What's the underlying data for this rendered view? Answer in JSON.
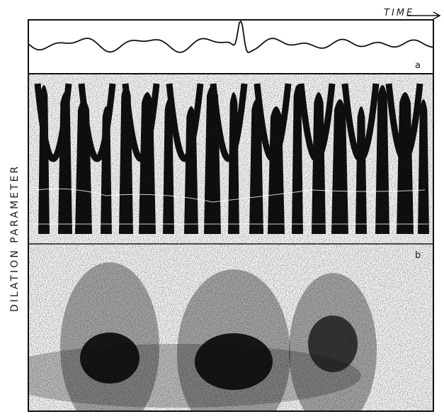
{
  "figure": {
    "time_label": "TIME",
    "dilation_label": "DILATION PARAMETER",
    "panel_a_label": "a",
    "panel_b_label": "b"
  },
  "colors": {
    "ink": "#111111",
    "paper": "#ffffff",
    "stipple": "#2a2a2a"
  }
}
